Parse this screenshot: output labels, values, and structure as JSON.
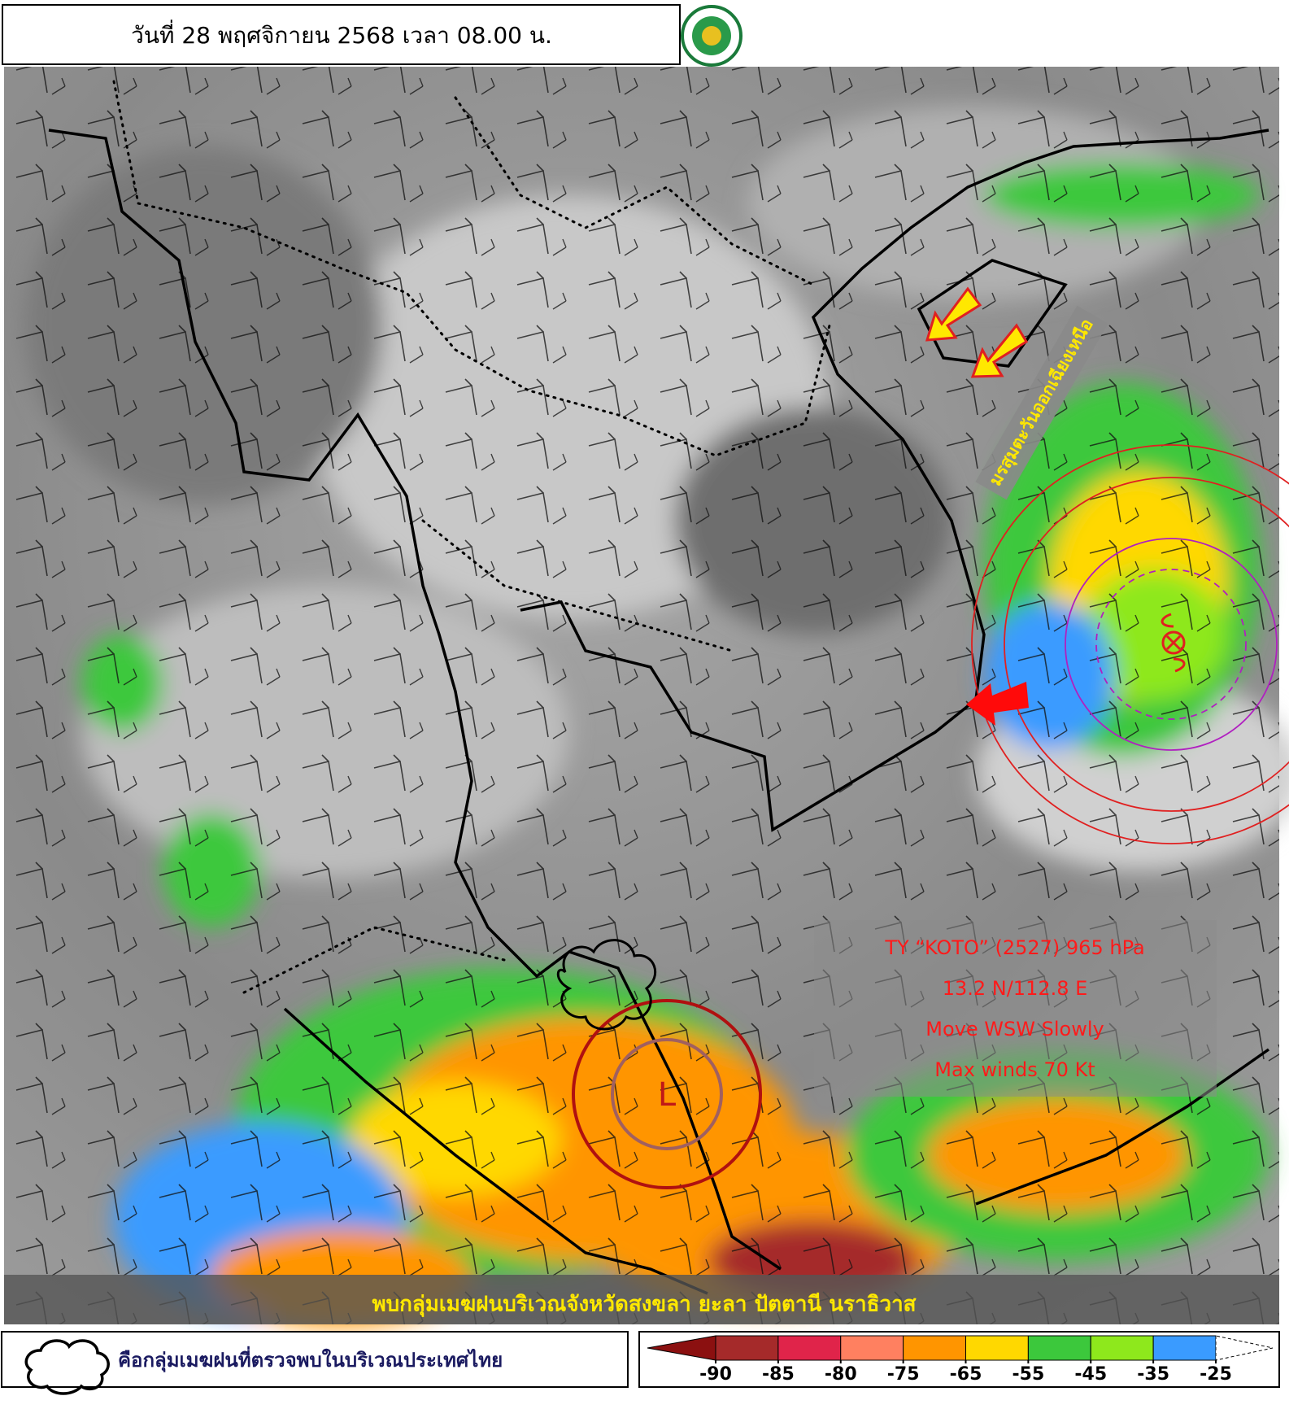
{
  "header": {
    "title": "วันที่ 28 พฤศจิกายน 2568 เวลา 08.00 น."
  },
  "typhoon_info": {
    "lines": [
      "TY “KOTO” (2527) 965 hPa",
      "13.2 N/112.8 E",
      "Move WSW Slowly",
      "Max winds 70 Kt"
    ]
  },
  "monsoon_label": "มรสุมตะวันออกเฉียงเหนือ",
  "low_label": "L",
  "banner": "พบกลุ่มเมฆฝนบริเวณจังหวัดสงขลา ยะลา ปัตตานี นราธิวาส",
  "legend": {
    "cloud_text": "คือกลุ่มเมฆฝนที่ตรวจพบในบริเวณประเทศไทย"
  },
  "color_scale": {
    "ticks": [
      -90,
      -85,
      -80,
      -75,
      -65,
      -55,
      -45,
      -35,
      -25
    ],
    "colors": [
      "#a52a2a",
      "#e0244a",
      "#ff8060",
      "#ff9500",
      "#ffd800",
      "#3cc83c",
      "#8ee81c",
      "#3a9bff"
    ],
    "under_color": "#8b1010",
    "over_color": "#ffffff"
  }
}
